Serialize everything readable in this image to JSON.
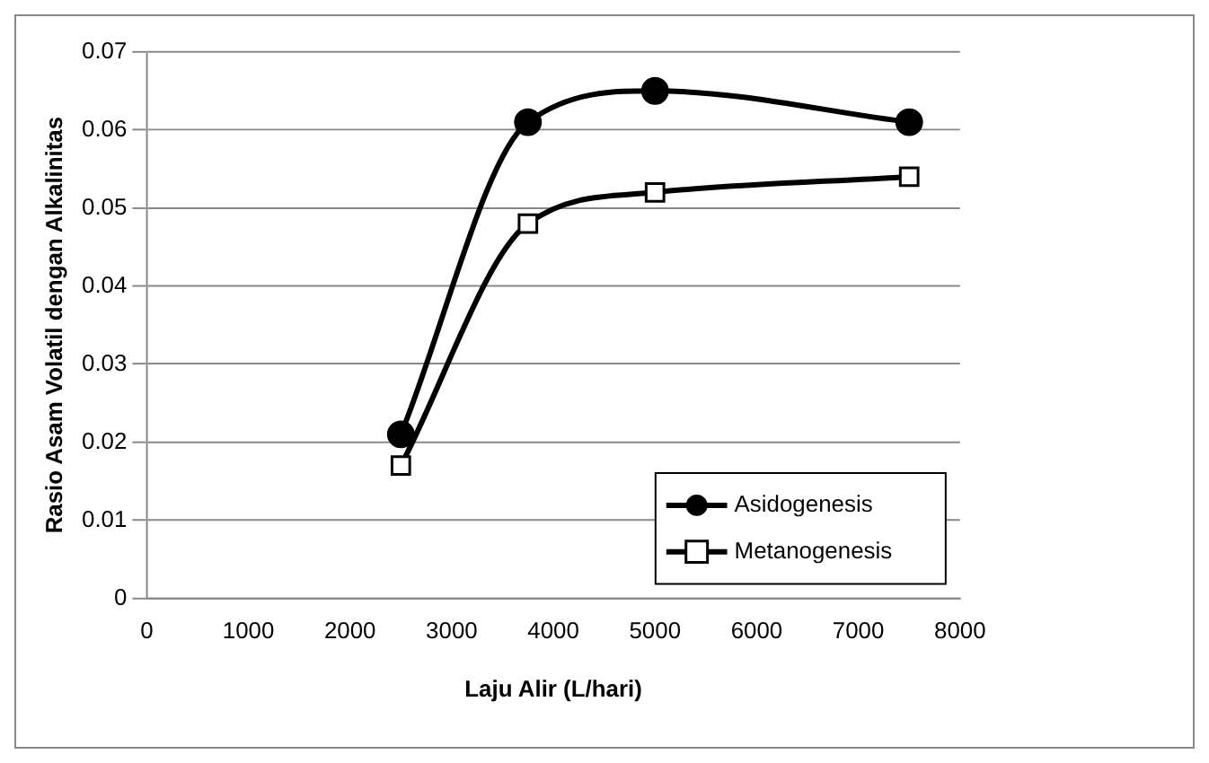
{
  "chart_data": {
    "type": "line",
    "xlabel": "Laju Alir (L/hari)",
    "ylabel": "Rasio Asam Volatil dengan Alkalinitas",
    "x": [
      2500,
      3750,
      5000,
      7500
    ],
    "series": [
      {
        "name": "Asidogenesis",
        "color": "#000000",
        "marker": "circle",
        "values": [
          0.021,
          0.061,
          0.065,
          0.061
        ]
      },
      {
        "name": "Metanogenesis",
        "color": "#000000",
        "marker": "square",
        "values": [
          0.017,
          0.048,
          0.052,
          0.054
        ]
      }
    ],
    "xlim": [
      0,
      8000
    ],
    "xticks": [
      0,
      1000,
      2000,
      3000,
      4000,
      5000,
      6000,
      7000,
      8000
    ],
    "ylim": [
      0,
      0.07
    ],
    "yticks": [
      0,
      0.01,
      0.02,
      0.03,
      0.04,
      0.05,
      0.06,
      0.07
    ],
    "grid": "y",
    "legend": "bottom right"
  }
}
